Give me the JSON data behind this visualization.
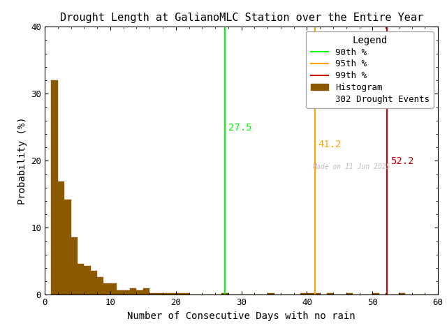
{
  "title": "Drought Length at GalianoMLC Station over the Entire Year",
  "xlabel": "Number of Consecutive Days with no rain",
  "ylabel": "Probability (%)",
  "xlim": [
    0,
    60
  ],
  "ylim": [
    0,
    40
  ],
  "xticks": [
    0,
    10,
    20,
    30,
    40,
    50,
    60
  ],
  "yticks": [
    0,
    10,
    20,
    30,
    40
  ],
  "bar_color": "#8B5A00",
  "bar_edgecolor": "#8B5A00",
  "percentile_90": 27.5,
  "percentile_95": 41.2,
  "percentile_99": 52.2,
  "color_90": "#00FF00",
  "color_95": "#FFA500",
  "color_99": "#CC0000",
  "drought_events": 302,
  "watermark": "Made on 11 Jun 2025",
  "bin_edges": [
    1,
    2,
    3,
    4,
    5,
    6,
    7,
    8,
    9,
    10,
    11,
    12,
    13,
    14,
    15,
    16,
    17,
    18,
    19,
    20,
    21,
    22,
    23,
    24,
    25,
    26,
    27,
    28,
    29,
    30,
    31,
    32,
    33,
    34,
    35,
    36,
    37,
    38,
    39,
    40,
    41,
    42,
    43,
    44,
    45,
    46,
    47,
    48,
    49,
    50,
    51,
    52,
    53,
    54,
    55,
    56,
    57,
    58,
    59,
    60
  ],
  "bin_heights": [
    32.0,
    16.9,
    14.2,
    8.6,
    4.6,
    4.3,
    3.6,
    2.6,
    1.7,
    1.7,
    0.7,
    0.7,
    1.0,
    0.7,
    1.0,
    0.3,
    0.3,
    0.3,
    0.3,
    0.3,
    0.3,
    0.0,
    0.0,
    0.0,
    0.0,
    0.0,
    0.3,
    0.0,
    0.0,
    0.0,
    0.0,
    0.0,
    0.0,
    0.3,
    0.0,
    0.0,
    0.0,
    0.0,
    0.3,
    0.3,
    0.3,
    0.0,
    0.3,
    0.0,
    0.0,
    0.3,
    0.0,
    0.0,
    0.0,
    0.3,
    0.0,
    0.0,
    0.0,
    0.3,
    0.0,
    0.0,
    0.0,
    0.0,
    0.0
  ]
}
